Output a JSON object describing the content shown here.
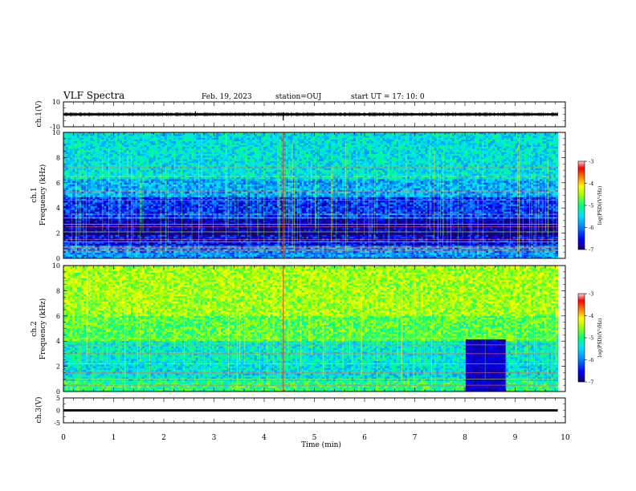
{
  "header": {
    "title": "VLF Spectra",
    "date": "Feb. 19, 2023",
    "station": "station=OUJ",
    "start": "start  UT =   17: 10: 0"
  },
  "colors": {
    "background": "#ffffff",
    "axes": "#000000",
    "colormap": [
      "#1a006b",
      "#0000ff",
      "#0080ff",
      "#00e0ff",
      "#00ff80",
      "#a0ff00",
      "#ffff00",
      "#ff8000",
      "#ff0000",
      "#ffd0d0"
    ]
  },
  "chart_data": [
    {
      "type": "line",
      "panel": "ch1-waveform",
      "ylabel": "ch.1(V)",
      "ylim": [
        -10,
        10
      ],
      "yticks": [
        "10",
        "-10"
      ],
      "xlim": [
        0,
        10
      ],
      "series": [
        {
          "x": [
            0,
            9.85
          ],
          "y": [
            0,
            0
          ],
          "amplitude_band": [
            -1,
            1
          ]
        }
      ]
    },
    {
      "type": "heatmap",
      "panel": "ch1-spectrogram",
      "ylabel": "ch.1\nFrequency (kHz)",
      "ylim": [
        0,
        10
      ],
      "yticks": [
        "0",
        "2",
        "4",
        "6",
        "8",
        "10"
      ],
      "xlim": [
        0,
        10
      ],
      "data_xmax": 9.85,
      "colorbar": {
        "label": "log(PSD)(V²/Hz)",
        "ticks": [
          "-3",
          "-4",
          "-5",
          "-6",
          "-7"
        ],
        "range": [
          -7,
          -3
        ]
      },
      "bands": [
        {
          "from": 0,
          "to": 1.0,
          "level": -6.0
        },
        {
          "from": 1.0,
          "to": 2.0,
          "level": -6.6
        },
        {
          "from": 2.0,
          "to": 3.2,
          "level": -6.8
        },
        {
          "from": 3.2,
          "to": 4.8,
          "level": -6.4
        },
        {
          "from": 4.8,
          "to": 6.3,
          "level": -5.9
        },
        {
          "from": 6.3,
          "to": 10.0,
          "level": -5.6
        }
      ],
      "horizontal_lines_khz": [
        0.3,
        0.6,
        0.85,
        1.3,
        1.5,
        2.1,
        2.5,
        2.7,
        3.2,
        3.5,
        4.6,
        5.3,
        6.5,
        7.2
      ],
      "dark_gap_khz": [
        1.8,
        1.95,
        2.25,
        2.35
      ]
    },
    {
      "type": "heatmap",
      "panel": "ch2-spectrogram",
      "ylabel": "ch.2\nFrequency (kHz)",
      "ylim": [
        0,
        10
      ],
      "yticks": [
        "0",
        "2",
        "4",
        "6",
        "8",
        "10"
      ],
      "xlim": [
        0,
        10
      ],
      "data_xmax": 9.85,
      "colorbar": {
        "label": "log(PSD)(V²/Hz)",
        "ticks": [
          "-3",
          "-4",
          "-5",
          "-6",
          "-7"
        ],
        "range": [
          -7,
          -3
        ]
      },
      "bands": [
        {
          "from": 0,
          "to": 0.8,
          "level": -5.2
        },
        {
          "from": 0.8,
          "to": 2.5,
          "level": -5.6
        },
        {
          "from": 2.5,
          "to": 4.0,
          "level": -5.5
        },
        {
          "from": 4.0,
          "to": 6.0,
          "level": -5.0
        },
        {
          "from": 6.0,
          "to": 10.0,
          "level": -4.7
        }
      ],
      "horizontal_lines_khz": [
        0.5,
        1.0,
        1.5,
        2.2,
        3.0,
        3.7,
        4.2
      ],
      "quiet_interval_min": [
        8.0,
        8.8
      ],
      "quiet_top_khz": 4.2
    },
    {
      "type": "line",
      "panel": "ch3-waveform",
      "ylabel": "ch.3(V)",
      "ylim": [
        -5,
        5
      ],
      "yticks": [
        "5",
        "0",
        "-5"
      ],
      "xlim": [
        0,
        10
      ],
      "xlabel": "Time (min)",
      "xticks": [
        "0",
        "1",
        "2",
        "3",
        "4",
        "5",
        "6",
        "7",
        "8",
        "9",
        "10"
      ],
      "series": [
        {
          "x": [
            0,
            9.85
          ],
          "y": [
            0,
            0
          ]
        }
      ]
    }
  ]
}
